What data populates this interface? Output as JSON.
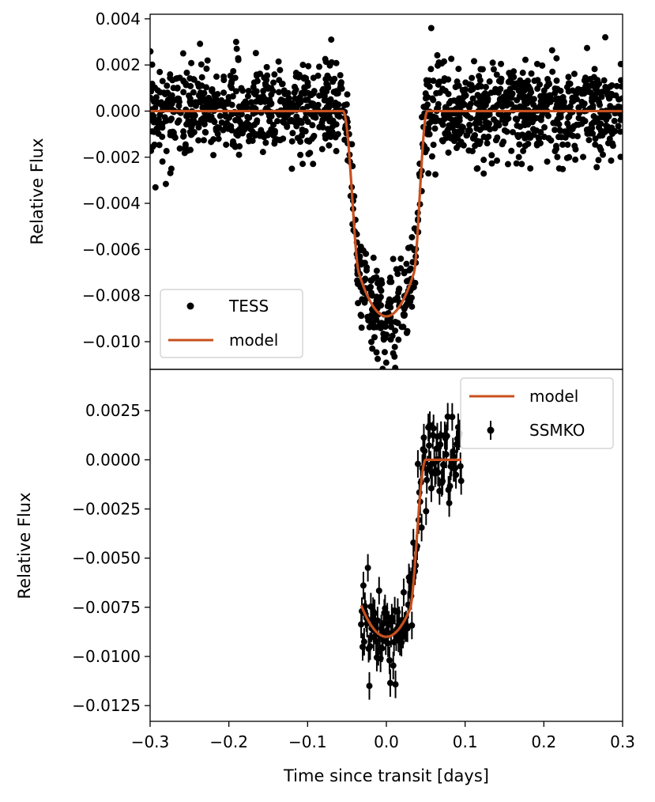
{
  "chart_data": [
    {
      "type": "scatter",
      "panel": "top",
      "ylabel": "Relative Flux",
      "xlim": [
        -0.3,
        0.3
      ],
      "ylim": [
        -0.0112,
        0.0042
      ],
      "yticks": [
        0.004,
        0.002,
        0.0,
        -0.002,
        -0.004,
        -0.006,
        -0.008,
        -0.01
      ],
      "ytick_labels": [
        "0.004",
        "0.002",
        "0.000",
        "−0.002",
        "−0.004",
        "−0.006",
        "−0.008",
        "−0.010"
      ],
      "legend_position": "lower-left",
      "series": [
        {
          "name": "TESS",
          "kind": "points",
          "color": "#000000",
          "n_points": 1500,
          "noise_sd": 0.00095
        },
        {
          "name": "model",
          "kind": "line",
          "color": "#c8501e"
        }
      ],
      "transit_model": {
        "depth": 0.0089,
        "ingress_start": -0.055,
        "ingress_end": -0.035,
        "egress_start": 0.035,
        "egress_end": 0.052
      },
      "outliers": [
        {
          "x": -0.07,
          "y": 0.0031
        },
        {
          "x": 0.057,
          "y": 0.0036
        },
        {
          "x": 0.278,
          "y": 0.0032
        },
        {
          "x": -0.19,
          "y": 0.0027
        },
        {
          "x": -0.258,
          "y": 0.0025
        },
        {
          "x": -0.273,
          "y": -0.0025
        },
        {
          "x": -0.12,
          "y": -0.0025
        },
        {
          "x": 0.115,
          "y": -0.0025
        },
        {
          "x": 0.232,
          "y": -0.002
        }
      ]
    },
    {
      "type": "scatter",
      "panel": "bottom",
      "xlabel": "Time since transit [days]",
      "ylabel": "Relative Flux",
      "xlim": [
        -0.3,
        0.3
      ],
      "ylim": [
        -0.0133,
        0.0046
      ],
      "xticks": [
        -0.3,
        -0.2,
        -0.1,
        0.0,
        0.1,
        0.2,
        0.3
      ],
      "xtick_labels": [
        "−0.3",
        "−0.2",
        "−0.1",
        "0.0",
        "0.1",
        "0.2",
        "0.3"
      ],
      "yticks": [
        0.0025,
        0.0,
        -0.0025,
        -0.005,
        -0.0075,
        -0.01,
        -0.0125
      ],
      "ytick_labels": [
        "0.0025",
        "0.0000",
        "−0.0025",
        "−0.0050",
        "−0.0075",
        "−0.0100",
        "−0.0125"
      ],
      "legend_position": "upper-right",
      "series": [
        {
          "name": "model",
          "kind": "line",
          "color": "#c8501e"
        },
        {
          "name": "SSMKO",
          "kind": "errorbar-points",
          "color": "#000000",
          "x_range": [
            -0.032,
            0.095
          ],
          "n_points": 135,
          "noise_sd": 0.0011,
          "yerr": 0.0007
        }
      ],
      "transit_model": {
        "depth": 0.009,
        "egress_start": 0.03,
        "egress_end": 0.05,
        "curvature": 0.0016,
        "curve_halfwidth": 0.032
      }
    }
  ],
  "legends": {
    "top": {
      "tess": "TESS",
      "model": "model"
    },
    "bottom": {
      "model": "model",
      "ssmko": "SSMKO"
    }
  },
  "axes": {
    "top_ylabel": "Relative Flux",
    "bottom_ylabel": "Relative Flux",
    "xlabel": "Time since transit [days]"
  },
  "colors": {
    "model": "#c8501e",
    "data": "#000000"
  }
}
